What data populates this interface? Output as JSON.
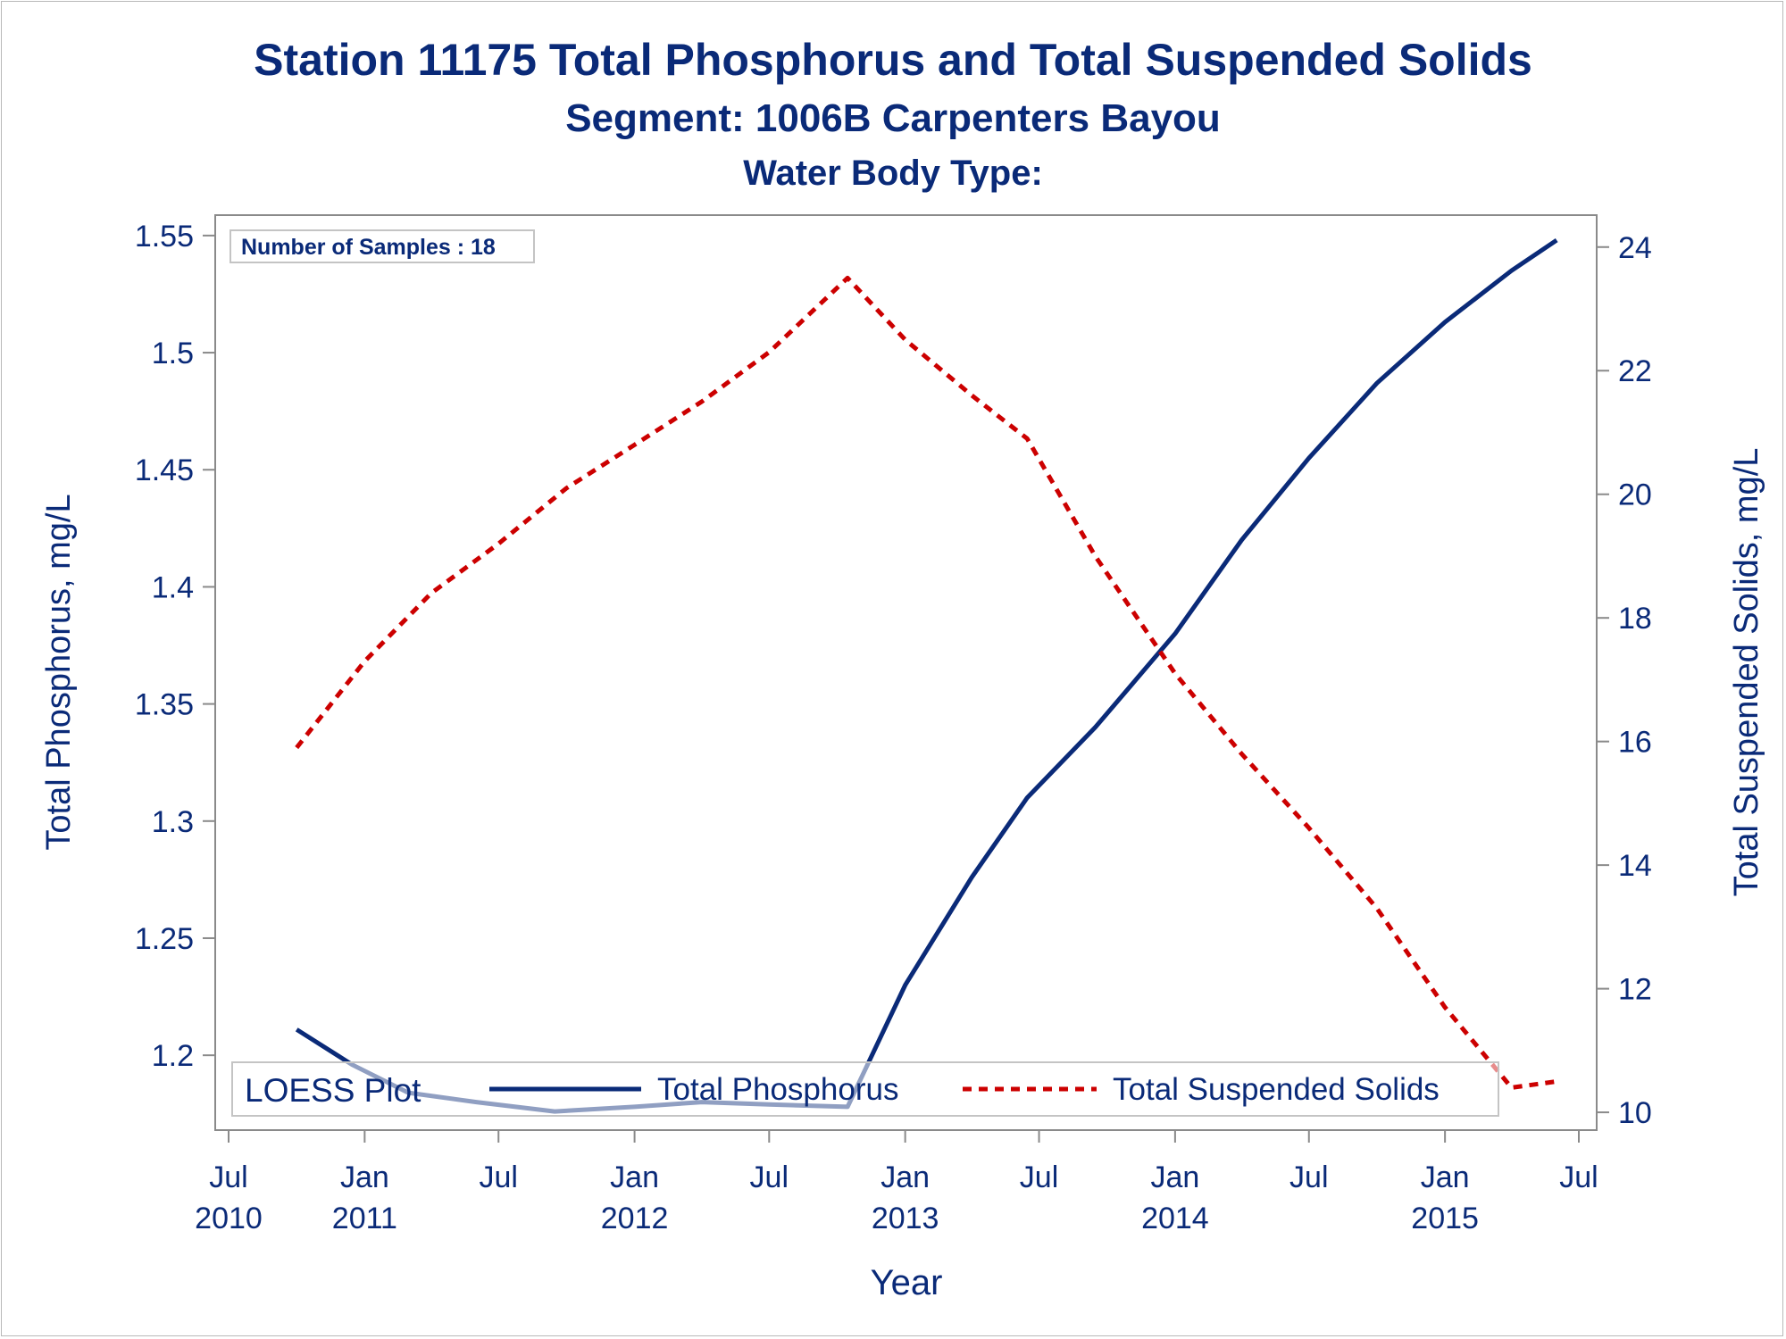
{
  "titles": {
    "line1": "Station 11175  Total Phosphorus and Total Suspended Solids",
    "line2": "Segment: 1006B  Carpenters Bayou",
    "line3": "Water Body Type:"
  },
  "inset": {
    "text": "Number of Samples : 18"
  },
  "legend": {
    "title": "LOESS Plot",
    "position": "bottom-inside",
    "items": [
      "Total Phosphorus",
      "Total Suspended Solids"
    ]
  },
  "colors": {
    "text": "#0a2a78",
    "phosphorus": "#0a2a78",
    "tss": "#cc0000",
    "axis": "#8a8a8a"
  },
  "chart_data": {
    "type": "line",
    "xlabel": "Year",
    "ylabel_left": "Total Phosphorus, mg/L",
    "ylabel_right": "Total Suspended Solids, mg/L",
    "xlim": [
      "2010-07",
      "2015-07"
    ],
    "ylim_left": [
      1.173,
      1.553
    ],
    "ylim_right": [
      9.9,
      24.3
    ],
    "grid": false,
    "x_ticks": [
      {
        "at": "2010-07",
        "month": "Jul",
        "year": "2010"
      },
      {
        "at": "2011-01",
        "month": "Jan",
        "year": "2011"
      },
      {
        "at": "2011-07",
        "month": "Jul",
        "year": ""
      },
      {
        "at": "2012-01",
        "month": "Jan",
        "year": "2012"
      },
      {
        "at": "2012-07",
        "month": "Jul",
        "year": ""
      },
      {
        "at": "2013-01",
        "month": "Jan",
        "year": "2013"
      },
      {
        "at": "2013-07",
        "month": "Jul",
        "year": ""
      },
      {
        "at": "2014-01",
        "month": "Jan",
        "year": "2014"
      },
      {
        "at": "2014-07",
        "month": "Jul",
        "year": ""
      },
      {
        "at": "2015-01",
        "month": "Jan",
        "year": "2015"
      },
      {
        "at": "2015-07",
        "month": "Jul",
        "year": ""
      }
    ],
    "y_left_ticks": [
      {
        "v": 1.2,
        "label": "1.2"
      },
      {
        "v": 1.25,
        "label": "1.25"
      },
      {
        "v": 1.3,
        "label": "1.3"
      },
      {
        "v": 1.35,
        "label": "1.35"
      },
      {
        "v": 1.4,
        "label": "1.4"
      },
      {
        "v": 1.45,
        "label": "1.45"
      },
      {
        "v": 1.5,
        "label": "1.5"
      },
      {
        "v": 1.55,
        "label": "1.55"
      }
    ],
    "y_right_ticks": [
      {
        "v": 10,
        "label": "10"
      },
      {
        "v": 12,
        "label": "12"
      },
      {
        "v": 14,
        "label": "14"
      },
      {
        "v": 16,
        "label": "16"
      },
      {
        "v": 18,
        "label": "18"
      },
      {
        "v": 20,
        "label": "20"
      },
      {
        "v": 22,
        "label": "22"
      },
      {
        "v": 24,
        "label": "24"
      }
    ],
    "series": [
      {
        "name": "Total Phosphorus",
        "axis": "left",
        "style": "solid",
        "x": [
          "2010-10-01",
          "2010-12-15",
          "2011-03-01",
          "2011-06-01",
          "2011-09-15",
          "2012-01-01",
          "2012-04-01",
          "2012-07-01",
          "2012-10-15",
          "2013-01-01",
          "2013-04-01",
          "2013-06-15",
          "2013-09-15",
          "2014-01-01",
          "2014-04-01",
          "2014-07-01",
          "2014-10-01",
          "2015-01-01",
          "2015-04-01",
          "2015-06-01"
        ],
        "values": [
          1.211,
          1.196,
          1.184,
          1.18,
          1.176,
          1.178,
          1.18,
          1.179,
          1.178,
          1.23,
          1.276,
          1.31,
          1.34,
          1.38,
          1.42,
          1.455,
          1.487,
          1.513,
          1.535,
          1.548
        ]
      },
      {
        "name": "Total Suspended Solids",
        "axis": "right",
        "style": "dashed",
        "x": [
          "2010-10-01",
          "2011-01-01",
          "2011-04-01",
          "2011-07-01",
          "2011-10-01",
          "2012-01-01",
          "2012-04-01",
          "2012-07-01",
          "2012-10-15",
          "2013-01-01",
          "2013-04-01",
          "2013-06-15",
          "2013-09-15",
          "2014-01-01",
          "2014-04-01",
          "2014-07-01",
          "2014-10-01",
          "2015-01-01",
          "2015-04-01",
          "2015-06-01"
        ],
        "values": [
          15.9,
          17.3,
          18.4,
          19.2,
          20.1,
          20.8,
          21.5,
          22.3,
          23.5,
          22.5,
          21.6,
          20.9,
          19.0,
          17.1,
          15.8,
          14.6,
          13.3,
          11.7,
          10.4,
          10.5
        ]
      }
    ]
  }
}
